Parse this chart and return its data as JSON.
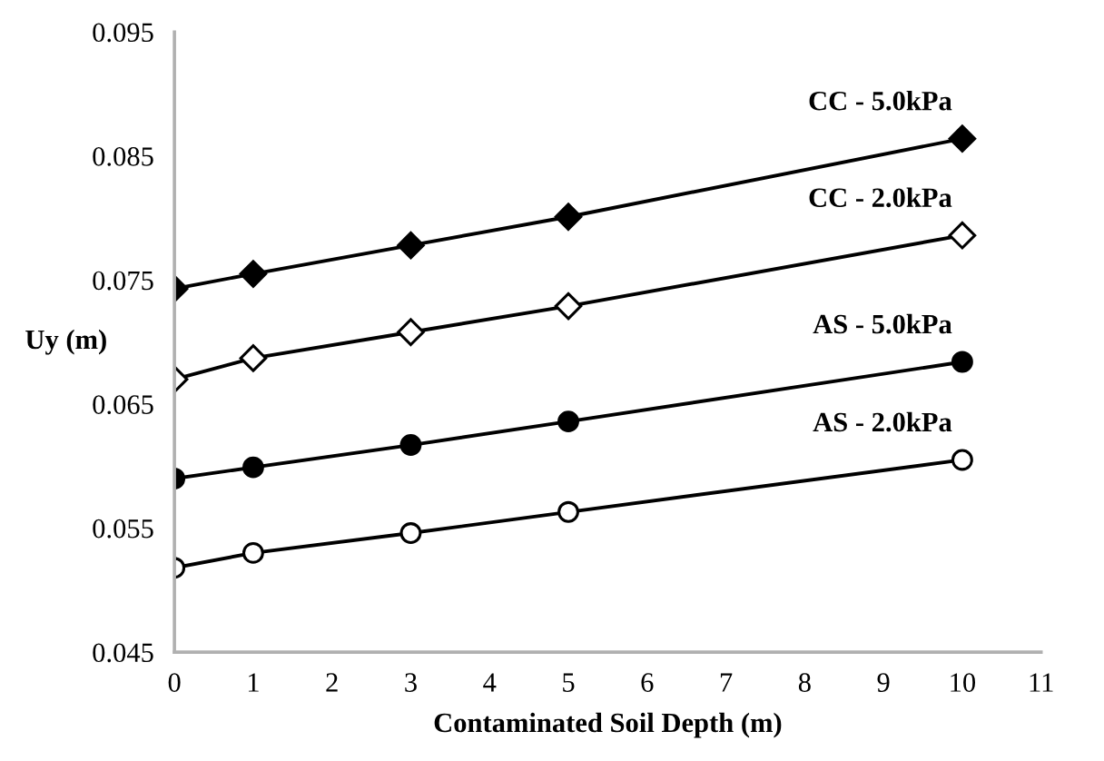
{
  "chart_data": {
    "type": "line",
    "xlabel": "Contaminated Soil Depth (m)",
    "ylabel": "Uy (m)",
    "xlim": [
      0,
      11
    ],
    "xticks": [
      0,
      1,
      2,
      3,
      4,
      5,
      6,
      7,
      8,
      9,
      10,
      11
    ],
    "ylim": [
      0.045,
      0.095
    ],
    "yticks": [
      0.045,
      0.055,
      0.065,
      0.075,
      0.085,
      0.095
    ],
    "x": [
      0,
      1,
      3,
      5,
      10
    ],
    "grid": false,
    "legend": false,
    "line_style": "solid",
    "series": [
      {
        "name": "CC - 5.0kPa",
        "color": "#000000",
        "marker": "diamond",
        "values": [
          0.0743,
          0.0755,
          0.0778,
          0.0801,
          0.0864
        ]
      },
      {
        "name": "CC - 2.0kPa",
        "color": "#000000",
        "marker": "diamond",
        "values": [
          0.067,
          0.0687,
          0.0708,
          0.0729,
          0.0786
        ]
      },
      {
        "name": "AS - 5.0kPa",
        "color": "#000000",
        "marker": "circle",
        "values": [
          0.059,
          0.0599,
          0.0617,
          0.0636,
          0.0684
        ]
      },
      {
        "name": "AS - 2.0kPa",
        "color": "#000000",
        "marker": "circle",
        "values": [
          0.0518,
          0.053,
          0.0546,
          0.0563,
          0.0605
        ]
      }
    ]
  }
}
